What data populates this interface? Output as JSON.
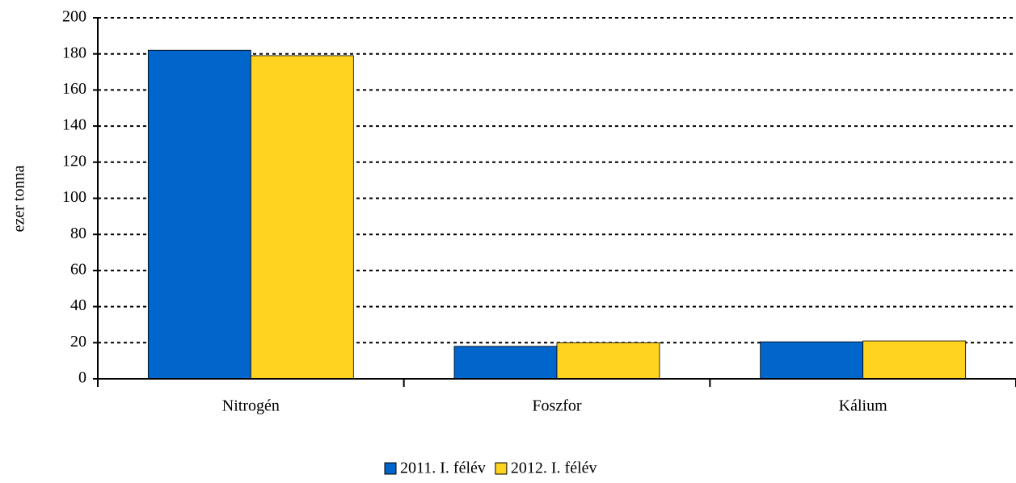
{
  "chart_data": {
    "type": "bar",
    "title": "",
    "xlabel": "",
    "ylabel": "ezer tonna",
    "categories": [
      "Nitrogén",
      "Foszfor",
      "Kálium"
    ],
    "series": [
      {
        "name": "2011. I. félév",
        "color": "#0066cc",
        "values": [
          182,
          18,
          20.5
        ]
      },
      {
        "name": "2012. I. félév",
        "color": "#ffd320",
        "values": [
          179,
          20,
          21
        ]
      }
    ],
    "ylim": [
      0,
      200
    ],
    "yticks": [
      0,
      20,
      40,
      60,
      80,
      100,
      120,
      140,
      160,
      180,
      200
    ],
    "grid": "horizontal dashed",
    "legend": "bottom-center"
  }
}
